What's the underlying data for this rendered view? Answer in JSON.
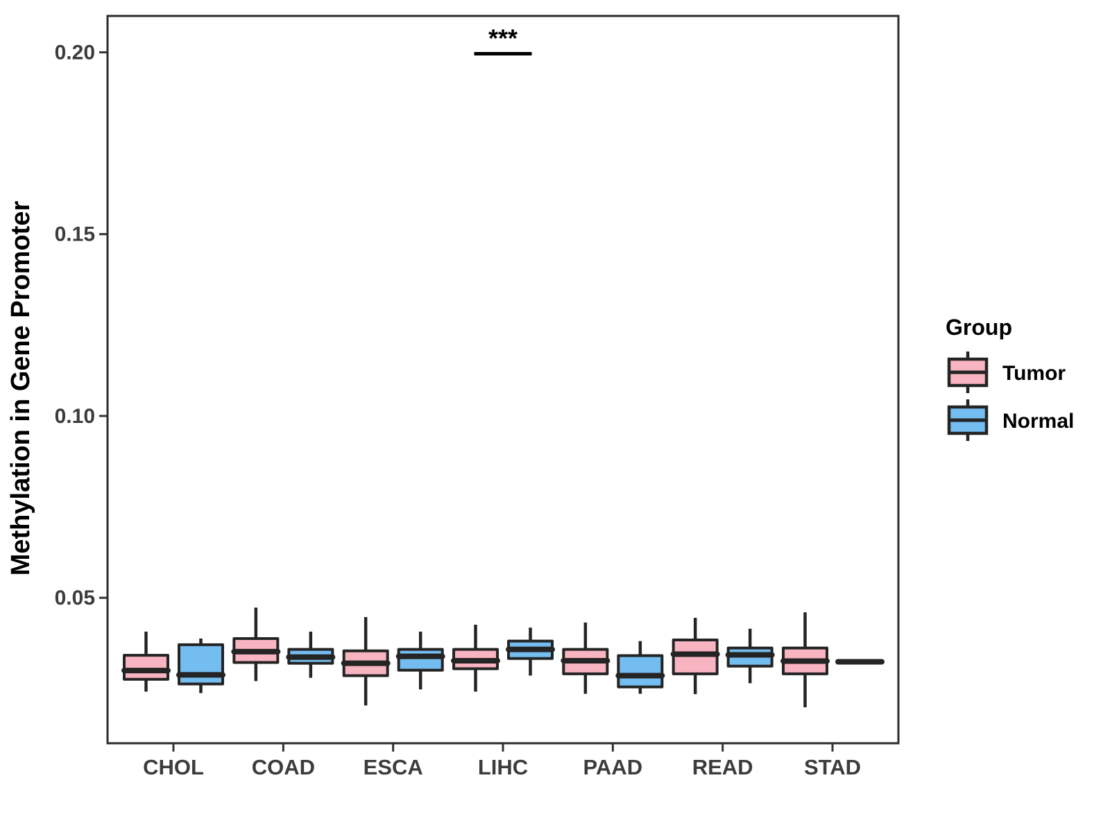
{
  "figure": {
    "background": "#ffffff",
    "panel_border_color": "#2b2b2b",
    "box_stroke_color": "#242424",
    "tick_color": "#333333"
  },
  "legend": {
    "title": "Group",
    "items": [
      {
        "label": "Tumor",
        "color": "#F9B4C1"
      },
      {
        "label": "Normal",
        "color": "#74BDF0"
      }
    ],
    "position": "right"
  },
  "chart_data": {
    "type": "boxplot",
    "title": "",
    "xlabel": "",
    "ylabel": "Methylation in Gene Promoter",
    "grid": false,
    "legend_position": "right",
    "categories": [
      "CHOL",
      "COAD",
      "ESCA",
      "LIHC",
      "PAAD",
      "READ",
      "STAD"
    ],
    "ylim": [
      0.01,
      0.21
    ],
    "ytick_values": [
      0.05,
      0.1,
      0.15,
      0.2
    ],
    "ytick_labels": [
      "0.05",
      "0.10",
      "0.15",
      "0.20"
    ],
    "series": [
      {
        "name": "Tumor",
        "color": "#F9B4C1",
        "boxes": [
          {
            "category": "CHOL",
            "low": 0.0242,
            "q1": 0.0276,
            "median": 0.03,
            "q3": 0.0342,
            "high": 0.0407
          },
          {
            "category": "COAD",
            "low": 0.0271,
            "q1": 0.0322,
            "median": 0.0352,
            "q3": 0.0388,
            "high": 0.0473
          },
          {
            "category": "ESCA",
            "low": 0.0204,
            "q1": 0.0286,
            "median": 0.032,
            "q3": 0.0354,
            "high": 0.0447
          },
          {
            "category": "LIHC",
            "low": 0.0242,
            "q1": 0.0305,
            "median": 0.0327,
            "q3": 0.0358,
            "high": 0.0426
          },
          {
            "category": "PAAD",
            "low": 0.0236,
            "q1": 0.0291,
            "median": 0.0327,
            "q3": 0.0358,
            "high": 0.0432
          },
          {
            "category": "READ",
            "low": 0.0235,
            "q1": 0.0291,
            "median": 0.0345,
            "q3": 0.0384,
            "high": 0.0445
          },
          {
            "category": "STAD",
            "low": 0.0199,
            "q1": 0.0291,
            "median": 0.0326,
            "q3": 0.0362,
            "high": 0.046
          }
        ]
      },
      {
        "name": "Normal",
        "color": "#74BDF0",
        "boxes": [
          {
            "category": "CHOL",
            "low": 0.0238,
            "q1": 0.0263,
            "median": 0.0288,
            "q3": 0.0371,
            "high": 0.0388
          },
          {
            "category": "COAD",
            "low": 0.028,
            "q1": 0.032,
            "median": 0.0337,
            "q3": 0.0358,
            "high": 0.0407
          },
          {
            "category": "ESCA",
            "low": 0.0248,
            "q1": 0.0301,
            "median": 0.0339,
            "q3": 0.0358,
            "high": 0.0407
          },
          {
            "category": "LIHC",
            "low": 0.0286,
            "q1": 0.0333,
            "median": 0.0358,
            "q3": 0.0381,
            "high": 0.0418
          },
          {
            "category": "PAAD",
            "low": 0.0236,
            "q1": 0.0255,
            "median": 0.0286,
            "q3": 0.0341,
            "high": 0.0381
          },
          {
            "category": "READ",
            "low": 0.0265,
            "q1": 0.0312,
            "median": 0.0343,
            "q3": 0.0362,
            "high": 0.0415
          },
          {
            "category": "STAD",
            "low": 0.0322,
            "q1": 0.0322,
            "median": 0.0324,
            "q3": 0.0326,
            "high": 0.0326
          }
        ]
      }
    ],
    "annotation": {
      "text": "***",
      "category": "LIHC",
      "y": 0.2
    }
  }
}
